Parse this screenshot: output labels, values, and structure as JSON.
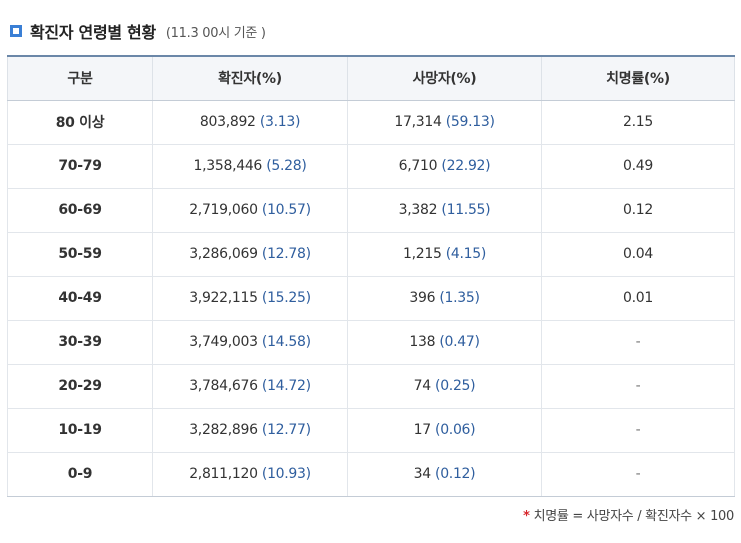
{
  "title": {
    "text": "확진자 연령별 현황",
    "sub": "(11.3 00시 기준 )",
    "icon": "square-bullet-icon",
    "accent": "#3a7fd5"
  },
  "table": {
    "headers": [
      "구분",
      "확진자(%)",
      "사망자(%)",
      "치명률(%)"
    ],
    "rows": [
      {
        "age": "80 이상",
        "cases": "803,892",
        "cases_pct": "(3.13)",
        "deaths": "17,314",
        "deaths_pct": "(59.13)",
        "fatality": "2.15"
      },
      {
        "age": "70-79",
        "cases": "1,358,446",
        "cases_pct": "(5.28)",
        "deaths": "6,710",
        "deaths_pct": "(22.92)",
        "fatality": "0.49"
      },
      {
        "age": "60-69",
        "cases": "2,719,060",
        "cases_pct": "(10.57)",
        "deaths": "3,382",
        "deaths_pct": "(11.55)",
        "fatality": "0.12"
      },
      {
        "age": "50-59",
        "cases": "3,286,069",
        "cases_pct": "(12.78)",
        "deaths": "1,215",
        "deaths_pct": "(4.15)",
        "fatality": "0.04"
      },
      {
        "age": "40-49",
        "cases": "3,922,115",
        "cases_pct": "(15.25)",
        "deaths": "396",
        "deaths_pct": "(1.35)",
        "fatality": "0.01"
      },
      {
        "age": "30-39",
        "cases": "3,749,003",
        "cases_pct": "(14.58)",
        "deaths": "138",
        "deaths_pct": "(0.47)",
        "fatality": "-"
      },
      {
        "age": "20-29",
        "cases": "3,784,676",
        "cases_pct": "(14.72)",
        "deaths": "74",
        "deaths_pct": "(0.25)",
        "fatality": "-"
      },
      {
        "age": "10-19",
        "cases": "3,282,896",
        "cases_pct": "(12.77)",
        "deaths": "17",
        "deaths_pct": "(0.06)",
        "fatality": "-"
      },
      {
        "age": "0-9",
        "cases": "2,811,120",
        "cases_pct": "(10.93)",
        "deaths": "34",
        "deaths_pct": "(0.12)",
        "fatality": "-"
      }
    ]
  },
  "footnote": {
    "star": "*",
    "text": "치명률 = 사망자수 / 확진자수 × 100",
    "star_color": "#d7262b"
  }
}
